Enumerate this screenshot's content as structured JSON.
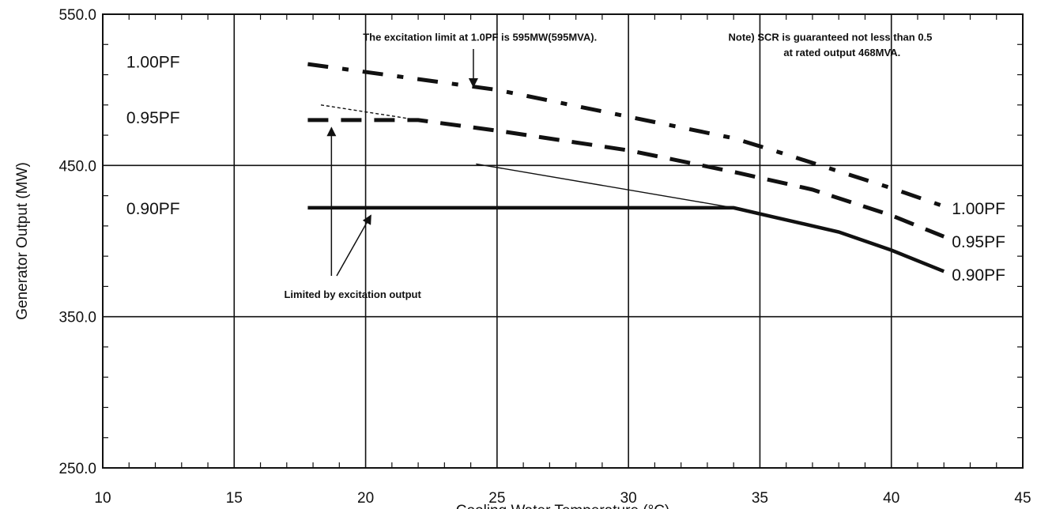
{
  "chart_data": {
    "type": "line",
    "title": "",
    "xlabel": "Cooling Water Temperature (°C)",
    "ylabel": "Generator Output (MW)",
    "xlim": [
      10,
      45
    ],
    "ylim": [
      250,
      550
    ],
    "x_ticks": [
      "10",
      "15",
      "20",
      "25",
      "30",
      "35",
      "40",
      "45"
    ],
    "y_ticks": [
      "250.0",
      "350.0",
      "450.0",
      "550.0"
    ],
    "grid": true,
    "series": [
      {
        "name": "1.00PF",
        "style": "dash-dot",
        "color": "#111111",
        "points": [
          [
            17.8,
            517
          ],
          [
            25,
            500
          ],
          [
            34,
            468
          ],
          [
            35.5,
            460
          ],
          [
            40,
            435
          ],
          [
            42,
            423
          ]
        ]
      },
      {
        "name": "0.95PF",
        "style": "dashed",
        "color": "#111111",
        "points": [
          [
            17.8,
            480
          ],
          [
            22,
            480
          ],
          [
            25,
            473
          ],
          [
            30,
            460
          ],
          [
            34.2,
            445
          ],
          [
            37,
            434
          ],
          [
            40,
            417
          ],
          [
            42,
            403
          ]
        ]
      },
      {
        "name": "0.90PF",
        "style": "solid",
        "color": "#222222",
        "points": [
          [
            17.8,
            422
          ],
          [
            34,
            422
          ],
          [
            35.5,
            416
          ],
          [
            38,
            406
          ],
          [
            40,
            394
          ],
          [
            42,
            380
          ]
        ]
      }
    ],
    "extra_lines": [
      {
        "points": [
          [
            18.3,
            490
          ],
          [
            22,
            480
          ]
        ],
        "style": "thin-dashed"
      },
      {
        "points": [
          [
            24.2,
            451
          ],
          [
            34,
            422
          ]
        ],
        "style": "thin"
      }
    ],
    "left_labels": [
      {
        "text": "1.00PF",
        "x": 10.9,
        "y": 519
      },
      {
        "text": "0.95PF",
        "x": 10.9,
        "y": 482
      },
      {
        "text": "0.90PF",
        "x": 10.9,
        "y": 422
      }
    ],
    "right_labels": [
      {
        "text": "1.00PF",
        "x": 42.3,
        "y": 422
      },
      {
        "text": "0.95PF",
        "x": 42.3,
        "y": 400
      },
      {
        "text": "0.90PF",
        "x": 42.3,
        "y": 378
      }
    ],
    "annotations": [
      {
        "text": "The excitation limit at 1.0PF is 595MW(595MVA).",
        "x": 19.9,
        "y": 535,
        "arrow_from": [
          24.1,
          527
        ],
        "arrow_to": [
          24.1,
          502
        ]
      },
      {
        "text": "Note) SCR is guaranteed not less than 0.5",
        "x": 33.8,
        "y": 535
      },
      {
        "text": "at rated output 468MVA.",
        "x": 35.9,
        "y": 525
      },
      {
        "text": "Limited by excitation output",
        "x": 16.9,
        "y": 365,
        "arrows": [
          {
            "from": [
              18.7,
              377
            ],
            "to": [
              18.7,
              475
            ]
          },
          {
            "from": [
              18.9,
              377
            ],
            "to": [
              20.2,
              417
            ]
          }
        ]
      }
    ]
  }
}
